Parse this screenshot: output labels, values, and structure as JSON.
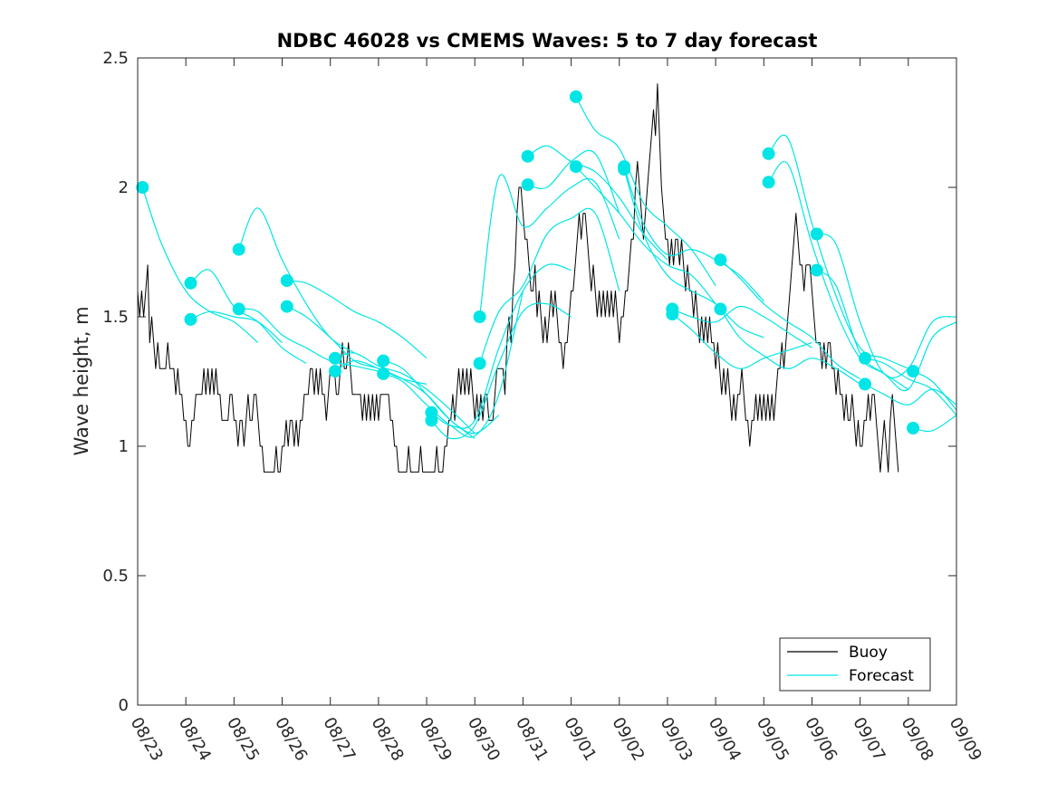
{
  "chart_data": {
    "type": "line",
    "title": "NDBC 46028 vs CMEMS Waves: 5 to 7 day forecast",
    "xlabel": "",
    "ylabel": "Wave height, m",
    "ylim": [
      0,
      2.5
    ],
    "xlim": [
      0,
      17
    ],
    "yticks": [
      "0",
      "0.5",
      "1",
      "1.5",
      "2",
      "2.5"
    ],
    "xtick_labels": [
      "08/23",
      "08/24",
      "08/25",
      "08/26",
      "08/27",
      "08/28",
      "08/29",
      "08/30",
      "08/31",
      "09/01",
      "09/02",
      "09/03",
      "09/04",
      "09/05",
      "09/06",
      "09/07",
      "09/08",
      "09/09"
    ],
    "legend": {
      "position": "bottom-right",
      "entries": [
        {
          "label": "Buoy",
          "color": "#000000"
        },
        {
          "label": "Forecast",
          "color": "#00e5e5"
        }
      ]
    },
    "colors": {
      "buoy": "#000000",
      "forecast": "#00e5e5",
      "marker": "#00e5e5"
    },
    "series": [
      {
        "name": "Buoy",
        "x_start": 0,
        "x_step": 0.04167,
        "values": [
          1.6,
          1.5,
          1.6,
          1.5,
          1.6,
          1.7,
          1.4,
          1.5,
          1.4,
          1.3,
          1.4,
          1.3,
          1.3,
          1.3,
          1.3,
          1.4,
          1.3,
          1.3,
          1.3,
          1.2,
          1.3,
          1.2,
          1.2,
          1.1,
          1.1,
          1.0,
          1.0,
          1.1,
          1.1,
          1.2,
          1.2,
          1.2,
          1.2,
          1.3,
          1.2,
          1.3,
          1.2,
          1.3,
          1.2,
          1.3,
          1.2,
          1.2,
          1.1,
          1.1,
          1.1,
          1.1,
          1.2,
          1.2,
          1.1,
          1.1,
          1.0,
          1.1,
          1.1,
          1.0,
          1.1,
          1.2,
          1.1,
          1.1,
          1.2,
          1.2,
          1.1,
          1.0,
          1.0,
          0.9,
          0.9,
          0.9,
          0.9,
          0.9,
          0.9,
          1.0,
          0.9,
          0.9,
          1.0,
          1.0,
          1.1,
          1.0,
          1.1,
          1.1,
          1.0,
          1.1,
          1.0,
          1.1,
          1.1,
          1.2,
          1.2,
          1.2,
          1.3,
          1.3,
          1.2,
          1.3,
          1.2,
          1.3,
          1.2,
          1.2,
          1.1,
          1.2,
          1.3,
          1.3,
          1.3,
          1.2,
          1.2,
          1.3,
          1.4,
          1.3,
          1.3,
          1.4,
          1.3,
          1.2,
          1.2,
          1.2,
          1.2,
          1.2,
          1.1,
          1.2,
          1.1,
          1.2,
          1.1,
          1.2,
          1.1,
          1.2,
          1.1,
          1.2,
          1.2,
          1.2,
          1.2,
          1.2,
          1.1,
          1.1,
          1.0,
          1.0,
          0.9,
          0.9,
          0.9,
          0.9,
          0.9,
          1.0,
          0.9,
          0.9,
          0.9,
          0.9,
          0.9,
          1.0,
          0.9,
          0.9,
          0.9,
          0.9,
          0.9,
          0.9,
          0.9,
          1.0,
          0.9,
          0.9,
          0.9,
          1.0,
          1.0,
          1.1,
          1.1,
          1.2,
          1.1,
          1.2,
          1.3,
          1.2,
          1.3,
          1.2,
          1.3,
          1.2,
          1.3,
          1.2,
          1.1,
          1.2,
          1.1,
          1.2,
          1.1,
          1.2,
          1.2,
          1.1,
          1.1,
          1.1,
          1.2,
          1.3,
          1.3,
          1.3,
          1.3,
          1.2,
          1.4,
          1.5,
          1.4,
          1.6,
          1.7,
          1.9,
          2.0,
          2.0,
          1.9,
          1.8,
          1.8,
          1.7,
          1.6,
          1.6,
          1.7,
          1.5,
          1.6,
          1.5,
          1.4,
          1.5,
          1.4,
          1.5,
          1.6,
          1.5,
          1.6,
          1.5,
          1.4,
          1.4,
          1.3,
          1.4,
          1.4,
          1.5,
          1.6,
          1.6,
          1.7,
          1.8,
          1.9,
          1.8,
          1.9,
          1.9,
          1.8,
          1.7,
          1.6,
          1.7,
          1.6,
          1.5,
          1.6,
          1.5,
          1.6,
          1.5,
          1.6,
          1.5,
          1.6,
          1.5,
          1.6,
          1.5,
          1.4,
          1.5,
          1.5,
          1.6,
          1.6,
          1.7,
          1.8,
          1.8,
          2.0,
          2.1,
          2.0,
          1.9,
          1.8,
          1.9,
          2.0,
          2.1,
          2.2,
          2.3,
          2.2,
          2.4,
          2.2,
          2.0,
          1.9,
          1.8,
          1.8,
          1.7,
          1.8,
          1.7,
          1.8,
          1.8,
          1.7,
          1.8,
          1.7,
          1.6,
          1.7,
          1.6,
          1.6,
          1.5,
          1.6,
          1.5,
          1.4,
          1.5,
          1.4,
          1.5,
          1.4,
          1.5,
          1.4,
          1.4,
          1.3,
          1.4,
          1.3,
          1.2,
          1.3,
          1.2,
          1.3,
          1.2,
          1.1,
          1.2,
          1.1,
          1.2,
          1.2,
          1.3,
          1.2,
          1.1,
          1.1,
          1.0,
          1.1,
          1.1,
          1.2,
          1.1,
          1.2,
          1.1,
          1.2,
          1.1,
          1.2,
          1.1,
          1.2,
          1.1,
          1.2,
          1.3,
          1.3,
          1.4,
          1.3,
          1.4,
          1.5,
          1.6,
          1.7,
          1.8,
          1.9,
          1.8,
          1.7,
          1.7,
          1.6,
          1.7,
          1.7,
          1.7,
          1.6,
          1.5,
          1.4,
          1.4,
          1.4,
          1.3,
          1.4,
          1.3,
          1.4,
          1.4,
          1.3,
          1.3,
          1.2,
          1.3,
          1.2,
          1.2,
          1.1,
          1.2,
          1.1,
          1.1,
          1.2,
          1.1,
          1.0,
          1.1,
          1.0,
          1.0,
          1.1,
          1.1,
          1.2,
          1.1,
          1.2,
          1.2,
          1.1,
          1.0,
          0.9,
          1.0,
          1.1,
          1.0,
          0.9,
          1.1,
          1.2,
          1.1,
          1.0,
          0.9
        ]
      },
      {
        "name": "Forecast 08/23",
        "x": [
          0.1,
          0.5,
          1.0,
          1.5,
          2.0,
          2.5
        ],
        "values": [
          2.0,
          1.78,
          1.6,
          1.52,
          1.48,
          1.4
        ]
      },
      {
        "name": "Forecast 08/24a",
        "x": [
          1.1,
          1.5,
          2.0,
          2.5,
          3.0,
          3.5
        ],
        "values": [
          1.63,
          1.68,
          1.54,
          1.48,
          1.38,
          1.32
        ]
      },
      {
        "name": "Forecast 08/24b",
        "x": [
          1.1,
          1.5,
          2.0,
          2.5,
          3.0
        ],
        "values": [
          1.49,
          1.52,
          1.5,
          1.48,
          1.4
        ]
      },
      {
        "name": "Forecast 08/25a",
        "x": [
          2.1,
          2.5,
          3.0,
          3.5,
          4.0,
          4.5
        ],
        "values": [
          1.76,
          1.92,
          1.72,
          1.55,
          1.42,
          1.36
        ]
      },
      {
        "name": "Forecast 08/25b",
        "x": [
          2.1,
          2.5,
          3.0,
          3.5,
          4.0,
          4.5,
          5.0
        ],
        "values": [
          1.53,
          1.52,
          1.43,
          1.38,
          1.33,
          1.31,
          1.29
        ]
      },
      {
        "name": "Forecast 08/26a",
        "x": [
          3.1,
          3.5,
          4.0,
          4.5,
          5.0,
          5.5,
          6.0
        ],
        "values": [
          1.64,
          1.63,
          1.58,
          1.52,
          1.48,
          1.42,
          1.34
        ]
      },
      {
        "name": "Forecast 08/26b",
        "x": [
          3.1,
          3.5,
          4.0,
          4.5,
          5.0,
          5.5,
          6.0
        ],
        "values": [
          1.54,
          1.5,
          1.42,
          1.33,
          1.3,
          1.26,
          1.24
        ]
      },
      {
        "name": "Forecast 08/27a",
        "x": [
          4.1,
          4.5,
          5.0,
          5.5,
          6.0,
          6.5,
          7.0
        ],
        "values": [
          1.34,
          1.36,
          1.31,
          1.28,
          1.22,
          1.14,
          1.05
        ]
      },
      {
        "name": "Forecast 08/27b",
        "x": [
          4.1,
          4.5,
          5.0,
          5.5,
          6.0,
          6.5,
          7.0
        ],
        "values": [
          1.29,
          1.33,
          1.3,
          1.26,
          1.2,
          1.1,
          1.03
        ]
      },
      {
        "name": "Forecast 08/28a",
        "x": [
          5.1,
          5.5,
          6.0,
          6.5,
          7.0,
          7.5
        ],
        "values": [
          1.33,
          1.3,
          1.2,
          1.1,
          1.05,
          1.12
        ]
      },
      {
        "name": "Forecast 08/28b",
        "x": [
          5.1,
          5.5,
          6.0,
          6.5,
          7.0,
          7.5,
          8.0
        ],
        "values": [
          1.28,
          1.25,
          1.16,
          1.08,
          1.04,
          1.2,
          1.6
        ]
      },
      {
        "name": "Forecast 08/29a",
        "x": [
          6.1,
          6.5,
          7.0,
          7.5,
          8.0,
          8.5,
          9.0
        ],
        "values": [
          1.13,
          1.08,
          1.1,
          1.38,
          1.6,
          1.7,
          1.68
        ]
      },
      {
        "name": "Forecast 08/29b",
        "x": [
          6.1,
          6.5,
          7.0,
          7.5,
          8.0,
          8.5,
          9.0
        ],
        "values": [
          1.1,
          1.03,
          1.08,
          1.32,
          1.52,
          1.55,
          1.5
        ]
      },
      {
        "name": "Forecast 08/30a",
        "x": [
          7.1,
          7.5,
          8.0,
          8.5,
          9.0,
          9.5,
          10.0
        ],
        "values": [
          1.5,
          2.04,
          1.85,
          1.92,
          2.0,
          2.02,
          1.8
        ]
      },
      {
        "name": "Forecast 08/30b",
        "x": [
          7.1,
          7.5,
          8.0,
          8.5,
          9.0,
          9.5,
          10.0
        ],
        "values": [
          1.32,
          1.52,
          1.62,
          1.82,
          1.88,
          1.9,
          1.6
        ]
      },
      {
        "name": "Forecast 08/31a",
        "x": [
          8.1,
          8.5,
          9.0,
          9.5,
          10.0,
          10.5,
          11.0
        ],
        "values": [
          2.12,
          2.16,
          2.1,
          2.06,
          1.96,
          1.82,
          1.72
        ]
      },
      {
        "name": "Forecast 08/31b",
        "x": [
          8.1,
          8.5,
          9.0,
          9.5,
          10.0
        ],
        "values": [
          2.01,
          2.0,
          2.1,
          2.13,
          1.9
        ]
      },
      {
        "name": "Forecast 09/01a",
        "x": [
          9.1,
          9.5,
          10.0,
          10.5,
          11.0,
          11.5,
          12.0
        ],
        "values": [
          2.35,
          2.22,
          2.15,
          1.94,
          1.85,
          1.76,
          1.62
        ]
      },
      {
        "name": "Forecast 09/01b",
        "x": [
          9.1,
          9.5,
          10.0,
          10.5,
          11.0,
          11.5,
          12.0
        ],
        "values": [
          2.08,
          2.0,
          1.9,
          1.78,
          1.7,
          1.66,
          1.55
        ]
      },
      {
        "name": "Forecast 09/02a",
        "x": [
          10.1,
          10.5,
          11.0,
          11.5,
          12.0,
          12.5,
          13.0
        ],
        "values": [
          2.08,
          1.86,
          1.74,
          1.76,
          1.72,
          1.66,
          1.56
        ]
      },
      {
        "name": "Forecast 09/02b",
        "x": [
          10.1,
          10.5,
          11.0,
          11.5,
          12.0,
          12.5,
          13.0
        ],
        "values": [
          2.07,
          1.82,
          1.66,
          1.6,
          1.55,
          1.46,
          1.42
        ]
      },
      {
        "name": "Forecast 09/03a",
        "x": [
          11.1,
          11.5,
          12.0,
          12.5,
          13.0,
          13.5,
          14.0
        ],
        "values": [
          1.53,
          1.5,
          1.48,
          1.54,
          1.5,
          1.44,
          1.38
        ]
      },
      {
        "name": "Forecast 09/03b",
        "x": [
          11.1,
          11.5,
          12.0,
          12.5,
          13.0,
          13.5,
          14.0
        ],
        "values": [
          1.51,
          1.45,
          1.36,
          1.3,
          1.34,
          1.37,
          1.4
        ]
      },
      {
        "name": "Forecast 09/04a",
        "x": [
          12.1,
          12.5,
          13.0,
          13.5,
          14.0,
          14.5,
          15.0
        ],
        "values": [
          1.72,
          1.65,
          1.55,
          1.48,
          1.42,
          1.32,
          1.26
        ]
      },
      {
        "name": "Forecast 09/04b",
        "x": [
          12.1,
          12.5,
          13.0,
          13.5,
          14.0,
          14.5,
          15.0
        ],
        "values": [
          1.53,
          1.42,
          1.35,
          1.3,
          1.34,
          1.3,
          1.24
        ]
      },
      {
        "name": "Forecast 09/05a",
        "x": [
          13.1,
          13.5,
          14.0,
          14.5,
          15.0,
          15.5,
          16.0
        ],
        "values": [
          2.13,
          2.19,
          1.86,
          1.58,
          1.38,
          1.34,
          1.3
        ]
      },
      {
        "name": "Forecast 09/05b",
        "x": [
          13.1,
          13.5,
          14.0,
          14.5,
          15.0,
          15.5,
          16.0
        ],
        "values": [
          2.02,
          2.09,
          1.78,
          1.52,
          1.34,
          1.28,
          1.22
        ]
      },
      {
        "name": "Forecast 09/06a",
        "x": [
          14.1,
          14.5,
          15.0,
          15.5,
          16.0,
          16.5,
          17.0
        ],
        "values": [
          1.82,
          1.78,
          1.48,
          1.28,
          1.3,
          1.48,
          1.5
        ]
      },
      {
        "name": "Forecast 09/06b",
        "x": [
          14.1,
          14.5,
          15.0,
          15.5,
          16.0,
          16.5,
          17.0
        ],
        "values": [
          1.68,
          1.62,
          1.36,
          1.28,
          1.22,
          1.42,
          1.48
        ]
      },
      {
        "name": "Forecast 09/07a",
        "x": [
          15.1,
          15.5,
          16.0,
          16.5,
          17.0
        ],
        "values": [
          1.34,
          1.32,
          1.26,
          1.22,
          1.12
        ]
      },
      {
        "name": "Forecast 09/07b",
        "x": [
          15.1,
          15.5,
          16.0,
          16.5,
          17.0
        ],
        "values": [
          1.24,
          1.2,
          1.16,
          1.22,
          1.16
        ]
      },
      {
        "name": "Forecast 09/08a",
        "x": [
          16.1,
          16.5,
          17.0
        ],
        "values": [
          1.29,
          1.25,
          1.14
        ]
      },
      {
        "name": "Forecast 09/08b",
        "x": [
          16.1,
          16.5,
          17.0
        ],
        "values": [
          1.07,
          1.06,
          1.12
        ]
      }
    ]
  }
}
